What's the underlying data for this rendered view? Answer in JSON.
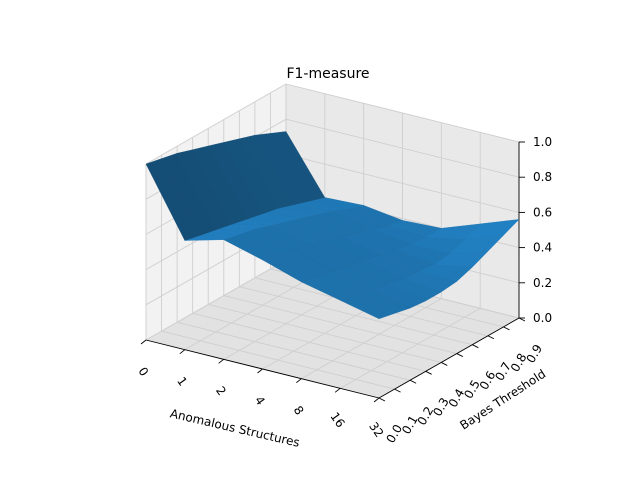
{
  "chart_data": {
    "type": "surface",
    "title": "F1-measure",
    "xlabel": "Anomalous Structures",
    "ylabel": "Bayes Threshold",
    "zlabel": "",
    "x_ticks": [
      "0",
      "1",
      "2",
      "4",
      "8",
      "16",
      "32"
    ],
    "y_ticks": [
      "0.0",
      "0.1",
      "0.2",
      "0.3",
      "0.4",
      "0.5",
      "0.6",
      "0.7",
      "0.8",
      "0.9"
    ],
    "z_ticks": [
      "0.0",
      "0.2",
      "0.4",
      "0.6",
      "0.8",
      "1.0"
    ],
    "zlim": [
      0,
      1
    ],
    "grid": true,
    "surface_color": "#1f77b4",
    "z": [
      [
        1.0,
        0.98,
        0.96,
        0.93,
        0.9,
        0.87,
        0.84,
        0.81,
        0.77,
        0.73
      ],
      [
        0.62,
        0.6,
        0.58,
        0.56,
        0.54,
        0.52,
        0.5,
        0.47,
        0.44,
        0.41
      ],
      [
        0.68,
        0.66,
        0.64,
        0.61,
        0.58,
        0.55,
        0.52,
        0.49,
        0.45,
        0.42
      ],
      [
        0.62,
        0.6,
        0.58,
        0.56,
        0.53,
        0.5,
        0.47,
        0.44,
        0.41,
        0.39
      ],
      [
        0.55,
        0.53,
        0.51,
        0.49,
        0.47,
        0.45,
        0.43,
        0.41,
        0.4,
        0.4
      ],
      [
        0.5,
        0.48,
        0.46,
        0.44,
        0.42,
        0.41,
        0.4,
        0.41,
        0.44,
        0.48
      ],
      [
        0.45,
        0.43,
        0.41,
        0.4,
        0.4,
        0.41,
        0.44,
        0.48,
        0.52,
        0.56
      ]
    ]
  }
}
